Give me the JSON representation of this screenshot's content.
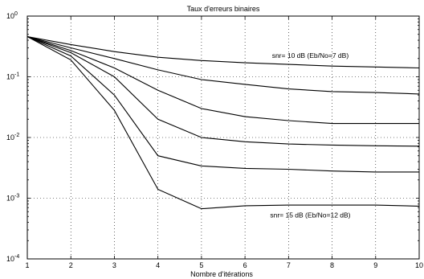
{
  "chart_data": {
    "type": "line",
    "title": "Taux d'erreurs binaires",
    "xlabel": "Nombre d'itérations",
    "ylabel": "",
    "xlim": [
      1,
      10
    ],
    "ylim": [
      0.0001,
      1
    ],
    "yscale": "log",
    "grid": true,
    "x_ticks": [
      "1",
      "2",
      "3",
      "4",
      "5",
      "6",
      "7",
      "8",
      "9",
      "10"
    ],
    "y_ticks": [
      {
        "value": 1,
        "base": "10",
        "exp": "0"
      },
      {
        "value": 0.1,
        "base": "10",
        "exp": "-1"
      },
      {
        "value": 0.01,
        "base": "10",
        "exp": "-2"
      },
      {
        "value": 0.001,
        "base": "10",
        "exp": "-3"
      },
      {
        "value": 0.0001,
        "base": "10",
        "exp": "-4"
      }
    ],
    "x": [
      1,
      2,
      3,
      4,
      5,
      6,
      7,
      8,
      9,
      10
    ],
    "series": [
      {
        "values": [
          0.46,
          0.34,
          0.26,
          0.21,
          0.185,
          0.17,
          0.16,
          0.15,
          0.145,
          0.14
        ]
      },
      {
        "values": [
          0.46,
          0.3,
          0.2,
          0.13,
          0.09,
          0.075,
          0.063,
          0.057,
          0.055,
          0.052
        ]
      },
      {
        "values": [
          0.46,
          0.27,
          0.14,
          0.06,
          0.03,
          0.022,
          0.019,
          0.017,
          0.017,
          0.017
        ]
      },
      {
        "values": [
          0.46,
          0.25,
          0.1,
          0.02,
          0.01,
          0.0085,
          0.0078,
          0.0075,
          0.0073,
          0.0072
        ]
      },
      {
        "values": [
          0.46,
          0.22,
          0.05,
          0.005,
          0.0034,
          0.0031,
          0.003,
          0.0028,
          0.0027,
          0.0027
        ]
      },
      {
        "values": [
          0.46,
          0.19,
          0.028,
          0.0014,
          0.00067,
          0.00075,
          0.00077,
          0.00077,
          0.00077,
          0.00074
        ]
      }
    ],
    "annotations": [
      {
        "text": "snr= 10 dB  (Eb/No=7 dB)",
        "x": 7.5,
        "y": 0.205
      },
      {
        "text": "snr= 15 dB  (Eb/No=12 dB)",
        "x": 7.5,
        "y": 0.00048
      }
    ]
  }
}
